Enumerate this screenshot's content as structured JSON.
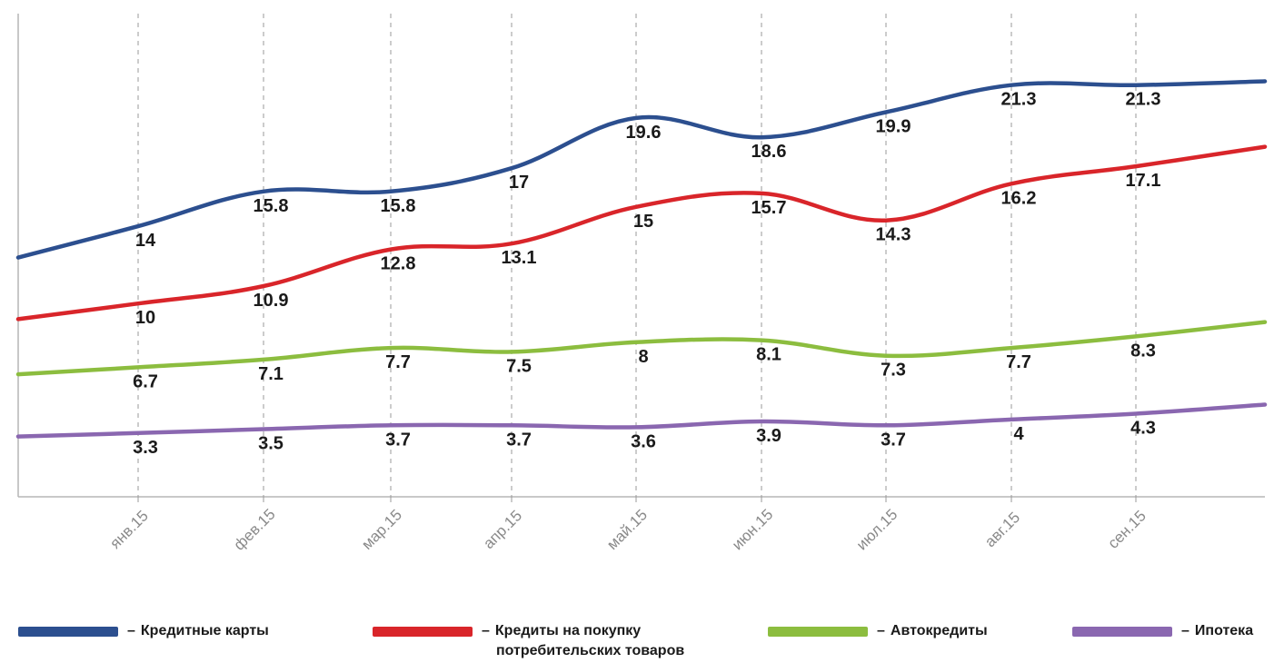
{
  "chart_data": {
    "type": "line",
    "title": "",
    "xlabel": "",
    "ylabel": "",
    "categories": [
      "янв.15",
      "фев.15",
      "мар.15",
      "апр.15",
      "май.15",
      "июн.15",
      "июл.15",
      "авг.15",
      "сен.15"
    ],
    "ylim": [
      0,
      25
    ],
    "grid": "vertical dashed",
    "legend_position": "bottom",
    "series": [
      {
        "name": "Кредитные карты",
        "color": "#2c4f8f",
        "values": [
          14,
          15.8,
          15.8,
          17,
          19.6,
          18.6,
          19.9,
          21.3,
          21.3
        ]
      },
      {
        "name": "Кредиты на покупку потребительских товаров",
        "color": "#d9252a",
        "values": [
          10,
          10.9,
          12.8,
          13.1,
          15,
          15.7,
          14.3,
          16.2,
          17.1
        ]
      },
      {
        "name": "Автокредиты",
        "color": "#8cbd3f",
        "values": [
          6.7,
          7.1,
          7.7,
          7.5,
          8,
          8.1,
          7.3,
          7.7,
          8.3
        ]
      },
      {
        "name": "Ипотека",
        "color": "#8a67b0",
        "values": [
          3.3,
          3.5,
          3.7,
          3.7,
          3.6,
          3.9,
          3.7,
          4,
          4.3
        ]
      }
    ]
  },
  "legend": {
    "items": [
      {
        "line1": "Кредитные карты",
        "line2": ""
      },
      {
        "line1": "Кредиты на покупку",
        "line2": "потребительских товаров"
      },
      {
        "line1": "Автокредиты",
        "line2": ""
      },
      {
        "line1": "Ипотека",
        "line2": ""
      }
    ],
    "dash": "–"
  }
}
